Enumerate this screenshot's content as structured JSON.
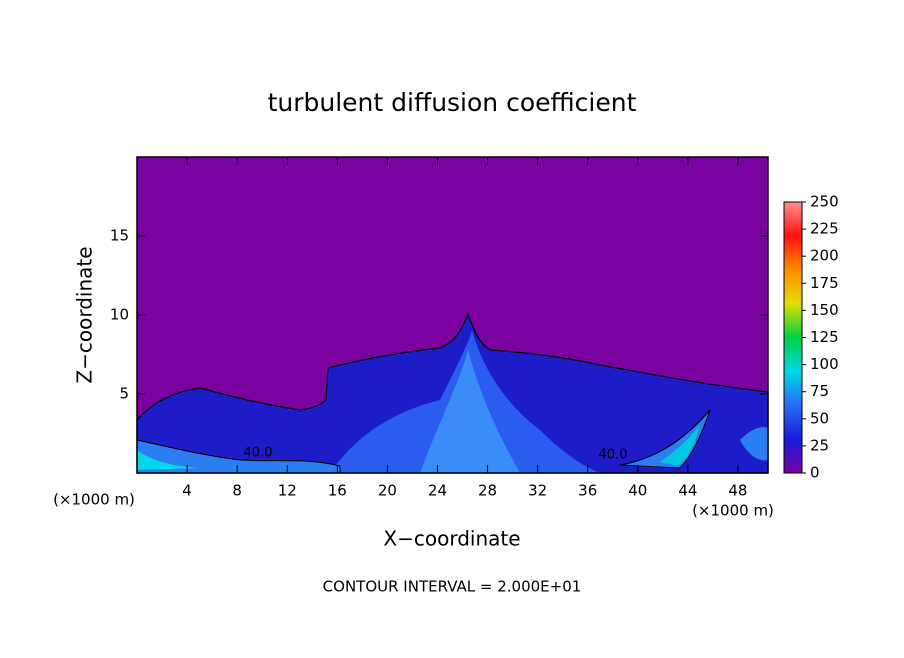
{
  "chart_data": {
    "type": "heatmap",
    "title": "turbulent diffusion coefficient",
    "xlabel": "X−coordinate",
    "ylabel": "Z−coordinate",
    "x_unit_left": "(×1000 m)",
    "x_unit_right": "(×1000 m)",
    "footer": "CONTOUR INTERVAL = 2.000E+01",
    "xlim": [
      0,
      50.4
    ],
    "xticks": [
      4,
      8,
      12,
      16,
      20,
      24,
      28,
      32,
      36,
      40,
      44,
      48
    ],
    "ylim": [
      0,
      20
    ],
    "yticks": [
      5,
      10,
      15
    ],
    "colorbar_lim": [
      0,
      250
    ],
    "colorbar_ticks": [
      0,
      25,
      50,
      75,
      100,
      125,
      150,
      175,
      200,
      225,
      250
    ],
    "colormap": [
      "#7a00a0",
      "#1a1adc",
      "#2a6cf0",
      "#00d8e8",
      "#00d040",
      "#e0e000",
      "#ff8c00",
      "#ff1010",
      "#ff9090"
    ],
    "contour_labels": [
      "40.0",
      "40.0"
    ]
  }
}
